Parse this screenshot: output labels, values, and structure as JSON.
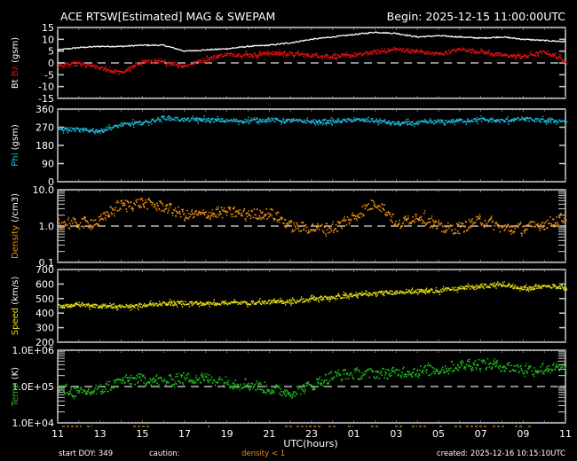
{
  "header": {
    "title": "ACE RTSW[Estimated] MAG & SWEPAM",
    "begin": "Begin: 2025-12-15 11:00:00UTC"
  },
  "footer": {
    "start_doy": "start DOY: 349",
    "caution": "caution:",
    "density_note": "density < 1",
    "created": "created: 2025-12-16 10:15:10UTC",
    "xlabel": "UTC(hours)"
  },
  "colors": {
    "background": "#000000",
    "frame": "#ffffff",
    "bt": "#ffffff",
    "bz": "#e01010",
    "phi": "#20c0e0",
    "density": "#f09010",
    "speed": "#e8e010",
    "temp": "#20c020",
    "caution": "#f09010"
  },
  "chart_data": [
    {
      "type": "line",
      "title": "Magnetic field Bt / Bz (gsm)",
      "ylabel": "Bt Bz (gsm)",
      "ylabel_parts": [
        {
          "text": "Bt",
          "color": "#ffffff"
        },
        {
          "text": "Bz",
          "color": "#e01010"
        },
        {
          "text": "(gsm)",
          "color": "#ffffff"
        }
      ],
      "yticks": [
        "15",
        "10",
        "5",
        "0",
        "-5",
        "-10",
        "-15"
      ],
      "ylim": [
        -15,
        15
      ],
      "scale": "linear",
      "reference_line": 0,
      "x_hours": [
        0,
        1,
        2,
        3,
        4,
        5,
        6,
        7,
        8,
        9,
        10,
        11,
        12,
        13,
        14,
        15,
        16,
        17,
        18,
        19,
        20,
        21,
        22,
        23,
        24
      ],
      "series": [
        {
          "name": "Bt",
          "color": "#ffffff",
          "values": [
            5.5,
            6.5,
            7,
            7,
            7.5,
            7.5,
            5,
            5.5,
            6,
            7,
            7.5,
            8.5,
            10,
            11,
            12,
            13,
            12.5,
            11,
            11.5,
            11,
            10.5,
            11,
            10,
            9.5,
            9
          ]
        },
        {
          "name": "Bz",
          "color": "#e01010",
          "values": [
            -1,
            0,
            -2,
            -4,
            1,
            0.5,
            -1,
            2,
            4,
            3.5,
            4.5,
            4,
            3.5,
            3,
            3.5,
            5,
            6,
            5,
            4,
            6,
            5,
            3.5,
            3,
            5,
            1
          ]
        }
      ]
    },
    {
      "type": "scatter",
      "title": "Phi (gsm)",
      "ylabel": "Phi (gsm)",
      "yticks": [
        "360",
        "270",
        "180",
        "90",
        "0"
      ],
      "ylim": [
        0,
        360
      ],
      "scale": "linear",
      "x_hours": [
        0,
        1,
        2,
        3,
        4,
        5,
        6,
        7,
        8,
        9,
        10,
        11,
        12,
        13,
        14,
        15,
        16,
        17,
        18,
        19,
        20,
        21,
        22,
        23,
        24
      ],
      "series": [
        {
          "name": "Phi",
          "color": "#20c0e0",
          "values": [
            265,
            260,
            255,
            285,
            295,
            320,
            310,
            310,
            305,
            305,
            310,
            305,
            300,
            300,
            310,
            305,
            290,
            295,
            300,
            305,
            310,
            305,
            315,
            305,
            305
          ]
        }
      ]
    },
    {
      "type": "scatter",
      "title": "Density (/cm3)",
      "ylabel": "Density (/cm3)",
      "yticks": [
        "10.0",
        "1.0",
        "0.1"
      ],
      "ylim": [
        0.1,
        10
      ],
      "scale": "log",
      "reference_line": 1.0,
      "x_hours": [
        0,
        1,
        2,
        3,
        4,
        5,
        6,
        7,
        8,
        9,
        10,
        11,
        12,
        13,
        14,
        15,
        16,
        17,
        18,
        19,
        20,
        21,
        22,
        23,
        24
      ],
      "series": [
        {
          "name": "Density",
          "color": "#f09010",
          "values": [
            1.3,
            1.2,
            1.4,
            4,
            4.5,
            3.5,
            2,
            2.2,
            2.5,
            2.2,
            2.3,
            1.0,
            0.9,
            0.9,
            1.8,
            4.5,
            1.0,
            2.0,
            0.9,
            0.9,
            1.5,
            0.9,
            0.9,
            1.2,
            1.8
          ]
        }
      ]
    },
    {
      "type": "scatter",
      "title": "Speed (km/s)",
      "ylabel": "Speed (km/s)",
      "yticks": [
        "700",
        "600",
        "500",
        "400",
        "300",
        "200"
      ],
      "ylim": [
        200,
        700
      ],
      "scale": "linear",
      "x_hours": [
        0,
        1,
        2,
        3,
        4,
        5,
        6,
        7,
        8,
        9,
        10,
        11,
        12,
        13,
        14,
        15,
        16,
        17,
        18,
        19,
        20,
        21,
        22,
        23,
        24
      ],
      "series": [
        {
          "name": "Speed",
          "color": "#e8e010",
          "values": [
            455,
            460,
            455,
            450,
            455,
            470,
            475,
            470,
            475,
            475,
            480,
            485,
            500,
            515,
            525,
            540,
            550,
            555,
            560,
            575,
            590,
            600,
            570,
            590,
            585
          ]
        }
      ]
    },
    {
      "type": "scatter",
      "title": "Temp (K)",
      "ylabel": "Temp (K)",
      "yticks": [
        "1.0E+06",
        "1.0E+05",
        "1.0E+04"
      ],
      "ylim": [
        10000,
        1000000
      ],
      "scale": "log",
      "reference_line": 100000,
      "x_hours": [
        0,
        1,
        2,
        3,
        4,
        5,
        6,
        7,
        8,
        9,
        10,
        11,
        12,
        13,
        14,
        15,
        16,
        17,
        18,
        19,
        20,
        21,
        22,
        23,
        24
      ],
      "series": [
        {
          "name": "Temp",
          "color": "#20c020",
          "values": [
            90000,
            70000,
            80000,
            150000,
            170000,
            140000,
            180000,
            170000,
            140000,
            120000,
            90000,
            70000,
            110000,
            200000,
            230000,
            240000,
            250000,
            280000,
            300000,
            400000,
            450000,
            380000,
            300000,
            320000,
            330000
          ]
        }
      ]
    }
  ],
  "xaxis": {
    "label": "UTC(hours)",
    "ticks": [
      "11",
      "13",
      "15",
      "17",
      "19",
      "21",
      "23",
      "01",
      "03",
      "05",
      "07",
      "09",
      "11"
    ]
  }
}
